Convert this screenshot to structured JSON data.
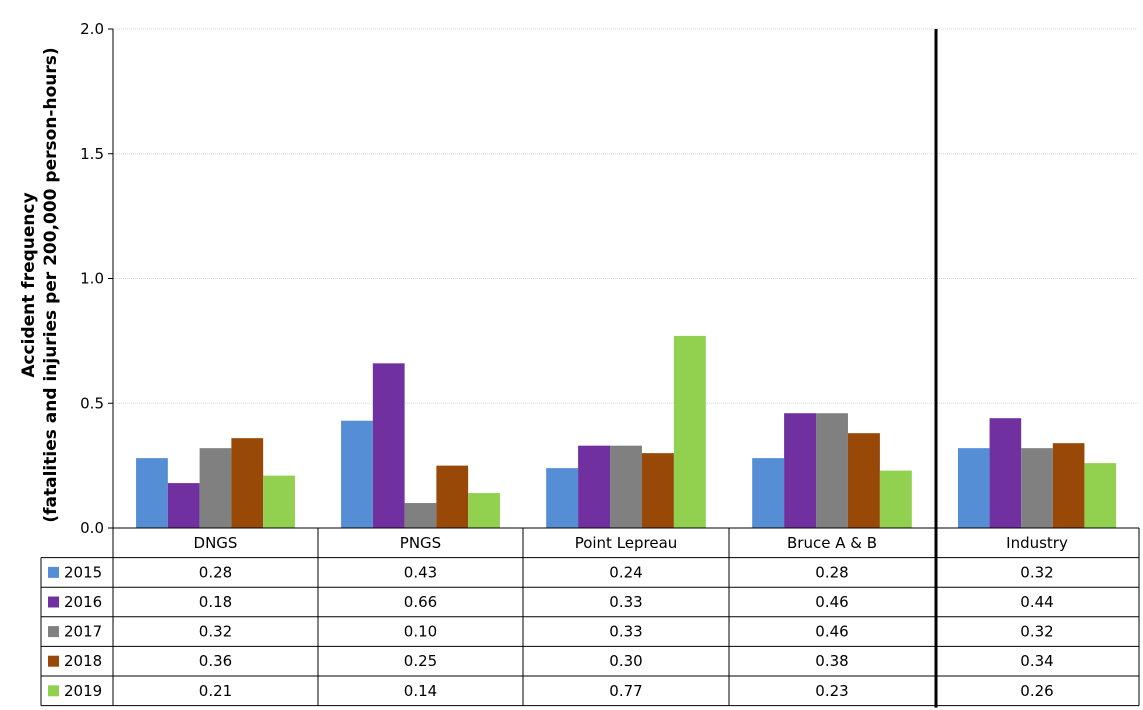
{
  "chart_data": {
    "type": "bar",
    "ylabel_line1": "Accident frequency",
    "ylabel_line2": "(fatalities and injuries per 200,000 person-hours)",
    "ylim": [
      0,
      2.0
    ],
    "yticks": [
      "0.0",
      "0.5",
      "1.0",
      "1.5",
      "2.0"
    ],
    "ytick_values": [
      0,
      0.5,
      1.0,
      1.5,
      2.0
    ],
    "grid": true,
    "legend": "data-table",
    "categories": [
      "DNGS",
      "PNGS",
      "Point Lepreau",
      "Bruce A & B",
      "Industry"
    ],
    "series": [
      {
        "name": "2015",
        "color": "#558ED5",
        "values": [
          0.28,
          0.43,
          0.24,
          0.28,
          0.32
        ],
        "labels": [
          "0.28",
          "0.43",
          "0.24",
          "0.28",
          "0.32"
        ]
      },
      {
        "name": "2016",
        "color": "#7030A0",
        "values": [
          0.18,
          0.66,
          0.33,
          0.46,
          0.44
        ],
        "labels": [
          "0.18",
          "0.66",
          "0.33",
          "0.46",
          "0.44"
        ]
      },
      {
        "name": "2017",
        "color": "#808080",
        "values": [
          0.32,
          0.1,
          0.33,
          0.46,
          0.32
        ],
        "labels": [
          "0.32",
          "0.10",
          "0.33",
          "0.46",
          "0.32"
        ]
      },
      {
        "name": "2018",
        "color": "#984807",
        "values": [
          0.36,
          0.25,
          0.3,
          0.38,
          0.34
        ],
        "labels": [
          "0.36",
          "0.25",
          "0.30",
          "0.38",
          "0.34"
        ]
      },
      {
        "name": "2019",
        "color": "#92D050",
        "values": [
          0.21,
          0.14,
          0.77,
          0.23,
          0.26
        ],
        "labels": [
          "0.21",
          "0.14",
          "0.77",
          "0.23",
          "0.26"
        ]
      }
    ],
    "separator_before_category": "Industry"
  }
}
